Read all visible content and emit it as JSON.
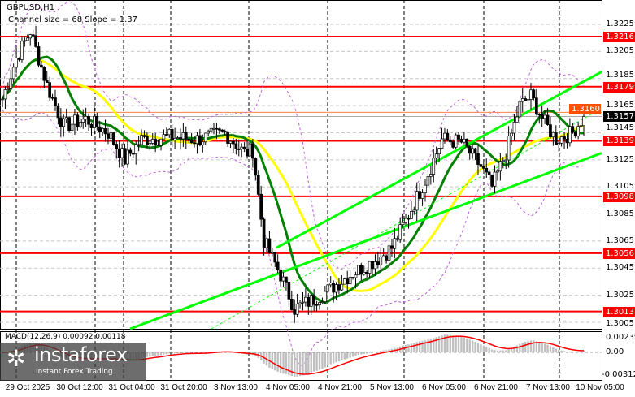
{
  "header": {
    "symbol": "GBPUSD,H1",
    "indicator": "Channel size = 68 Slope = 1.37"
  },
  "macd": {
    "label": "MACD(12,26,9) 0.00092 0.00118",
    "ticks": [
      "0.00239",
      "0.00",
      "-0.00312"
    ]
  },
  "price_axis": {
    "ticks": [
      "1.3225",
      "1.3205",
      "1.3185",
      "1.3165",
      "1.3145",
      "1.3125",
      "1.3105",
      "1.3085",
      "1.3065",
      "1.3045",
      "1.3025",
      "1.3005"
    ]
  },
  "levels": [
    {
      "value": "1.3216"
    },
    {
      "value": "1.3179"
    },
    {
      "value": "1.3139"
    },
    {
      "value": "1.3098"
    },
    {
      "value": "1.3056"
    },
    {
      "value": "1.3013"
    }
  ],
  "current_price": "1.3157",
  "ask_price": "1.3160",
  "time_axis": [
    "29 Oct 2025",
    "30 Oct 12:00",
    "31 Oct 04:00",
    "31 Oct 20:00",
    "3 Nov 13:00",
    "4 Nov 05:00",
    "4 Nov 21:00",
    "5 Nov 13:00",
    "6 Nov 05:00",
    "6 Nov 21:00",
    "7 Nov 13:00",
    "10 Nov 05:00"
  ],
  "logo": {
    "name": "instaforex",
    "tagline": "Instant Forex Trading"
  },
  "colors": {
    "level": "#ff0000",
    "ma_fast": "#008000",
    "ma_slow": "#ffff00",
    "channel": "#00ff00",
    "envelope": "#c060e0",
    "macd_hist": "#c0c0c0",
    "macd_signal": "#ff0000"
  },
  "chart_data": {
    "type": "candlestick",
    "close_path": [
      [
        0,
        1.317
      ],
      [
        5,
        1.32
      ],
      [
        10,
        1.322
      ],
      [
        16,
        1.318
      ],
      [
        22,
        1.315
      ],
      [
        30,
        1.3155
      ],
      [
        38,
        1.3145
      ],
      [
        44,
        1.3125
      ],
      [
        50,
        1.314
      ],
      [
        60,
        1.3142
      ],
      [
        70,
        1.314
      ],
      [
        80,
        1.3145
      ],
      [
        87,
        1.313
      ],
      [
        90,
        1.3132
      ],
      [
        94,
        1.3065
      ],
      [
        100,
        1.304
      ],
      [
        105,
        1.3015
      ],
      [
        112,
        1.3022
      ],
      [
        118,
        1.303
      ],
      [
        125,
        1.304
      ],
      [
        135,
        1.3052
      ],
      [
        140,
        1.306
      ],
      [
        145,
        1.308
      ],
      [
        152,
        1.311
      ],
      [
        158,
        1.314
      ],
      [
        165,
        1.3138
      ],
      [
        172,
        1.312
      ],
      [
        176,
        1.3105
      ],
      [
        181,
        1.313
      ],
      [
        186,
        1.3165
      ],
      [
        190,
        1.3172
      ],
      [
        195,
        1.3152
      ],
      [
        199,
        1.314
      ],
      [
        205,
        1.3145
      ],
      [
        209,
        1.3157
      ]
    ]
  }
}
